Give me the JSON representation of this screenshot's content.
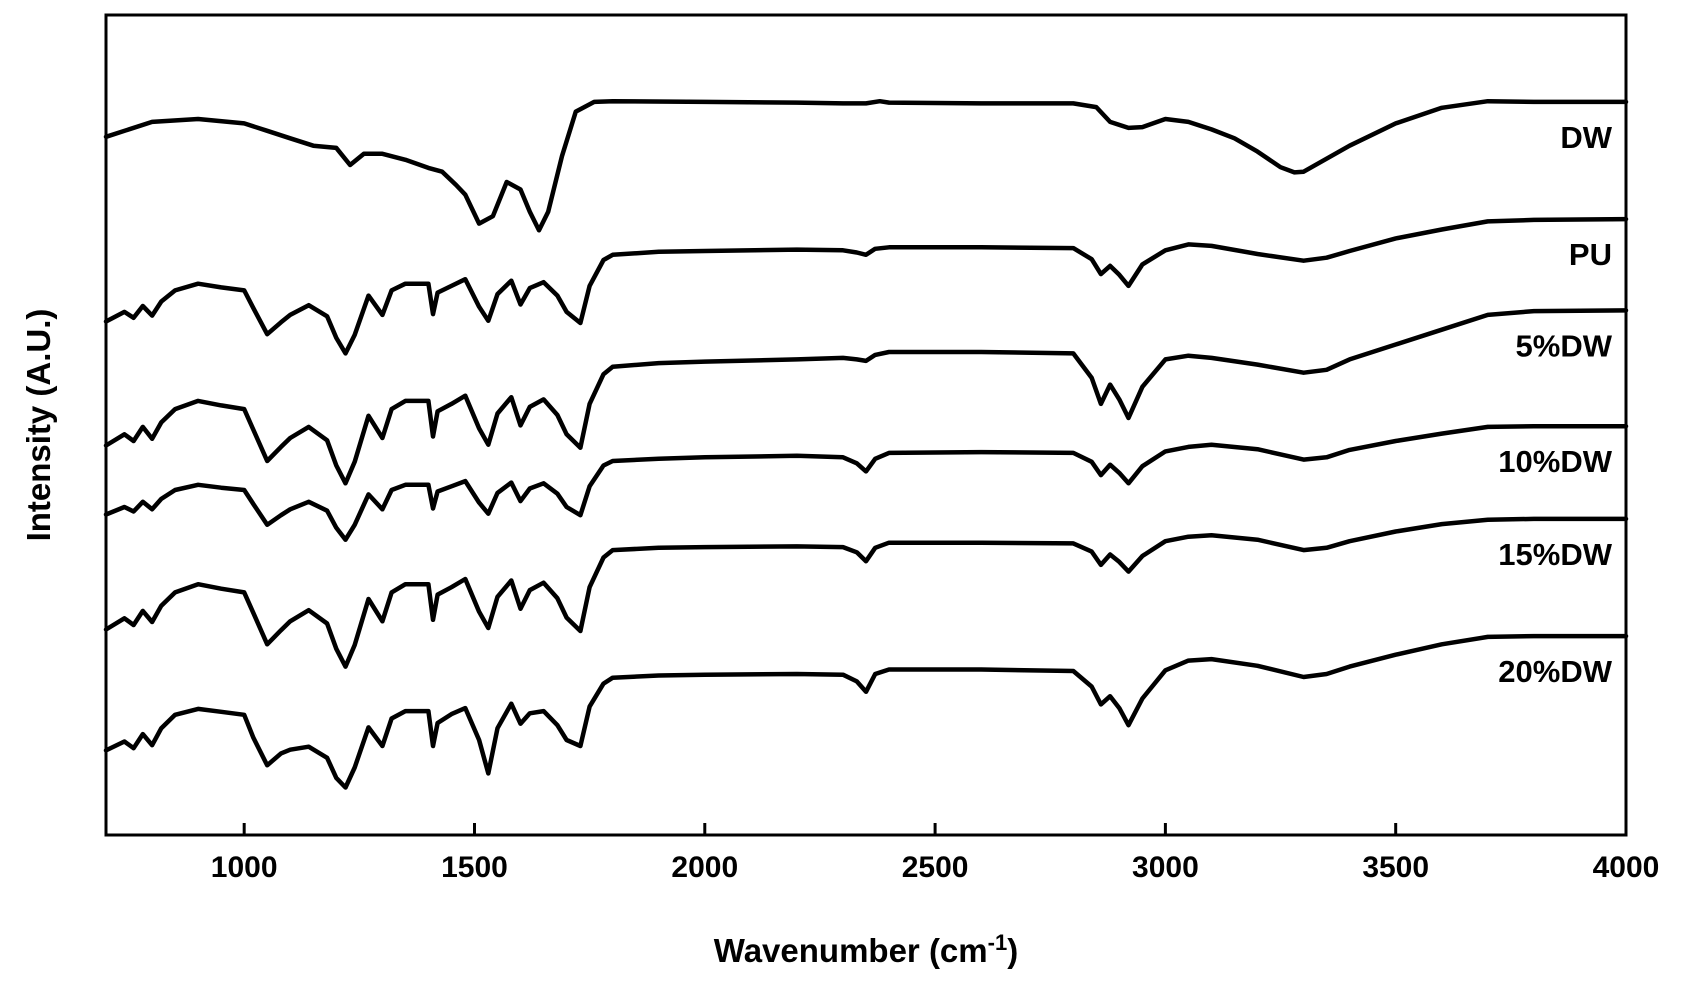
{
  "chart_data": {
    "type": "line",
    "xlabel": "Wavenumber (cm",
    "xlabel_superscript": "-1",
    "xlabel_suffix": ")",
    "ylabel": "Intensity (A.U.)",
    "xlim": [
      700,
      4000
    ],
    "ylim": [
      0,
      100
    ],
    "xticks": [
      1000,
      1500,
      2000,
      2500,
      3000,
      3500,
      4000
    ],
    "y_ticks_shown": false,
    "grid": false,
    "series": [
      {
        "name": "DW",
        "x": [
          700,
          800,
          900,
          1000,
          1050,
          1100,
          1150,
          1200,
          1230,
          1260,
          1300,
          1350,
          1400,
          1430,
          1460,
          1480,
          1510,
          1540,
          1570,
          1600,
          1620,
          1640,
          1660,
          1690,
          1720,
          1760,
          1800,
          2000,
          2200,
          2300,
          2350,
          2380,
          2400,
          2600,
          2800,
          2850,
          2880,
          2920,
          2950,
          3000,
          3050,
          3100,
          3150,
          3200,
          3250,
          3280,
          3300,
          3400,
          3500,
          3600,
          3700,
          3800,
          4000
        ],
        "y": [
          91.0,
          93.0,
          93.4,
          92.8,
          91.8,
          90.8,
          89.8,
          89.5,
          87.2,
          88.7,
          88.7,
          87.9,
          86.8,
          86.3,
          84.5,
          83.2,
          79.3,
          80.3,
          84.9,
          83.9,
          80.9,
          78.4,
          80.9,
          88.4,
          94.4,
          95.7,
          95.8,
          95.7,
          95.6,
          95.5,
          95.5,
          95.8,
          95.6,
          95.5,
          95.5,
          95.0,
          93.0,
          92.2,
          92.3,
          93.4,
          93.0,
          92.0,
          90.8,
          89.0,
          86.9,
          86.2,
          86.3,
          89.8,
          92.8,
          94.9,
          95.8,
          95.7,
          95.7
        ]
      },
      {
        "name": "PU",
        "x": [
          700,
          740,
          760,
          780,
          800,
          820,
          850,
          900,
          950,
          1000,
          1020,
          1050,
          1080,
          1100,
          1140,
          1180,
          1200,
          1220,
          1240,
          1270,
          1300,
          1320,
          1350,
          1400,
          1410,
          1420,
          1450,
          1480,
          1510,
          1530,
          1550,
          1580,
          1600,
          1620,
          1650,
          1680,
          1700,
          1730,
          1750,
          1780,
          1800,
          1900,
          2000,
          2200,
          2300,
          2330,
          2350,
          2370,
          2400,
          2600,
          2800,
          2840,
          2860,
          2880,
          2900,
          2920,
          2950,
          3000,
          3050,
          3100,
          3200,
          3300,
          3350,
          3400,
          3500,
          3600,
          3700,
          3800,
          4000
        ],
        "y": [
          66.1,
          67.4,
          66.6,
          68.2,
          66.9,
          68.8,
          70.3,
          71.2,
          70.7,
          70.3,
          67.9,
          64.4,
          66.0,
          67.0,
          68.3,
          66.8,
          63.9,
          61.8,
          64.3,
          69.6,
          67.0,
          70.3,
          71.2,
          71.2,
          67.1,
          70.0,
          70.9,
          71.8,
          68.1,
          66.2,
          69.8,
          71.6,
          68.4,
          70.6,
          71.4,
          69.6,
          67.4,
          65.9,
          70.9,
          74.4,
          75.1,
          75.5,
          75.6,
          75.8,
          75.7,
          75.4,
          75.1,
          75.9,
          76.1,
          76.1,
          76.0,
          74.5,
          72.5,
          73.6,
          72.4,
          70.9,
          73.8,
          75.7,
          76.5,
          76.3,
          75.2,
          74.3,
          74.7,
          75.6,
          77.3,
          78.5,
          79.6,
          79.8,
          79.9
        ]
      },
      {
        "name": "5%DW",
        "x": [
          700,
          740,
          760,
          780,
          800,
          820,
          850,
          900,
          950,
          1000,
          1020,
          1050,
          1080,
          1100,
          1140,
          1180,
          1200,
          1220,
          1240,
          1270,
          1300,
          1320,
          1350,
          1400,
          1410,
          1420,
          1450,
          1480,
          1510,
          1530,
          1550,
          1580,
          1600,
          1620,
          1650,
          1680,
          1700,
          1730,
          1750,
          1780,
          1800,
          1900,
          2000,
          2200,
          2300,
          2330,
          2350,
          2370,
          2400,
          2600,
          2800,
          2840,
          2860,
          2880,
          2900,
          2920,
          2950,
          3000,
          3050,
          3100,
          3200,
          3300,
          3350,
          3400,
          3500,
          3600,
          3700,
          3800,
          4000
        ],
        "y": [
          49.4,
          50.9,
          50.0,
          51.9,
          50.3,
          52.5,
          54.3,
          55.4,
          54.8,
          54.3,
          51.5,
          47.3,
          49.2,
          50.4,
          51.9,
          50.1,
          46.7,
          44.3,
          47.2,
          53.4,
          50.4,
          54.3,
          55.4,
          55.4,
          50.6,
          54.0,
          55.0,
          56.1,
          51.7,
          49.5,
          53.7,
          55.9,
          52.1,
          54.6,
          55.6,
          53.5,
          50.9,
          49.1,
          55.0,
          59.0,
          60.0,
          60.5,
          60.7,
          61.0,
          61.2,
          61.0,
          60.8,
          61.6,
          62.0,
          62.0,
          61.8,
          58.5,
          55.0,
          57.6,
          55.6,
          53.1,
          57.3,
          61.0,
          61.5,
          61.2,
          60.3,
          59.2,
          59.6,
          61.0,
          63.0,
          65.0,
          67.0,
          67.5,
          67.6
        ]
      },
      {
        "name": "10%DW",
        "x": [
          700,
          740,
          760,
          780,
          800,
          820,
          850,
          900,
          950,
          1000,
          1020,
          1050,
          1080,
          1100,
          1140,
          1180,
          1200,
          1220,
          1240,
          1270,
          1300,
          1320,
          1350,
          1400,
          1410,
          1420,
          1450,
          1480,
          1510,
          1530,
          1550,
          1580,
          1600,
          1620,
          1650,
          1680,
          1700,
          1730,
          1750,
          1780,
          1800,
          1900,
          2000,
          2200,
          2300,
          2330,
          2350,
          2370,
          2400,
          2600,
          2800,
          2840,
          2860,
          2880,
          2900,
          2920,
          2950,
          3000,
          3050,
          3100,
          3200,
          3300,
          3350,
          3400,
          3500,
          3600,
          3700,
          3800,
          4000
        ],
        "y": [
          40.1,
          41.1,
          40.5,
          41.8,
          40.8,
          42.2,
          43.4,
          44.1,
          43.7,
          43.4,
          41.5,
          38.7,
          40.0,
          40.8,
          41.8,
          40.6,
          38.3,
          36.7,
          38.7,
          42.8,
          40.8,
          43.4,
          44.1,
          44.1,
          40.9,
          43.2,
          43.9,
          44.6,
          41.7,
          40.2,
          43.0,
          44.4,
          41.9,
          43.6,
          44.3,
          42.9,
          41.1,
          40.0,
          43.9,
          46.7,
          47.3,
          47.6,
          47.8,
          48.0,
          47.8,
          47.0,
          45.9,
          47.6,
          48.4,
          48.5,
          48.4,
          47.2,
          45.4,
          46.8,
          45.7,
          44.3,
          46.6,
          48.6,
          49.2,
          49.5,
          48.9,
          47.5,
          47.8,
          48.8,
          50.0,
          51.0,
          51.9,
          52.0,
          52.0
        ]
      },
      {
        "name": "15%DW",
        "x": [
          700,
          740,
          760,
          780,
          800,
          820,
          850,
          900,
          950,
          1000,
          1020,
          1050,
          1080,
          1100,
          1140,
          1180,
          1200,
          1220,
          1240,
          1270,
          1300,
          1320,
          1350,
          1400,
          1410,
          1420,
          1450,
          1480,
          1510,
          1530,
          1550,
          1580,
          1600,
          1620,
          1650,
          1680,
          1700,
          1730,
          1750,
          1780,
          1800,
          1900,
          2000,
          2200,
          2300,
          2330,
          2350,
          2370,
          2400,
          2600,
          2800,
          2840,
          2860,
          2880,
          2900,
          2920,
          2950,
          3000,
          3050,
          3100,
          3200,
          3300,
          3350,
          3400,
          3500,
          3600,
          3700,
          3800,
          4000
        ],
        "y": [
          24.6,
          26.1,
          25.2,
          27.1,
          25.6,
          27.8,
          29.6,
          30.7,
          30.1,
          29.6,
          26.8,
          22.6,
          24.5,
          25.7,
          27.2,
          25.4,
          22.0,
          19.6,
          22.5,
          28.7,
          25.7,
          29.6,
          30.7,
          30.7,
          25.9,
          29.3,
          30.3,
          31.4,
          27.0,
          24.8,
          29.0,
          31.2,
          27.4,
          29.9,
          30.9,
          28.8,
          26.2,
          24.4,
          30.3,
          34.3,
          35.3,
          35.6,
          35.7,
          35.8,
          35.7,
          35.0,
          33.8,
          35.6,
          36.3,
          36.3,
          36.2,
          35.1,
          33.3,
          34.7,
          33.7,
          32.4,
          34.5,
          36.5,
          37.1,
          37.3,
          36.7,
          35.3,
          35.6,
          36.5,
          37.8,
          38.8,
          39.4,
          39.5,
          39.5
        ]
      },
      {
        "name": "20%DW",
        "x": [
          700,
          740,
          760,
          780,
          800,
          820,
          850,
          900,
          950,
          1000,
          1020,
          1050,
          1080,
          1100,
          1140,
          1180,
          1200,
          1220,
          1240,
          1270,
          1300,
          1320,
          1350,
          1400,
          1410,
          1420,
          1450,
          1480,
          1510,
          1530,
          1550,
          1580,
          1600,
          1620,
          1650,
          1680,
          1700,
          1730,
          1750,
          1780,
          1800,
          1900,
          2000,
          2200,
          2300,
          2330,
          2350,
          2370,
          2400,
          2600,
          2800,
          2840,
          2860,
          2880,
          2900,
          2920,
          2950,
          3000,
          3050,
          3100,
          3200,
          3300,
          3350,
          3400,
          3500,
          3600,
          3700,
          3800,
          4000
        ],
        "y": [
          8.3,
          9.5,
          8.6,
          10.5,
          9.0,
          11.3,
          13.1,
          13.9,
          13.5,
          13.1,
          10.0,
          6.3,
          7.9,
          8.4,
          8.8,
          7.3,
          4.6,
          3.3,
          6.0,
          11.4,
          8.9,
          12.6,
          13.6,
          13.6,
          8.9,
          12.0,
          13.2,
          14.0,
          9.7,
          5.2,
          11.3,
          14.6,
          11.9,
          13.3,
          13.6,
          11.7,
          9.7,
          8.9,
          14.2,
          17.3,
          18.1,
          18.4,
          18.5,
          18.6,
          18.5,
          17.6,
          16.2,
          18.6,
          19.2,
          19.2,
          19.0,
          16.9,
          14.5,
          15.6,
          14.0,
          11.7,
          15.3,
          19.1,
          20.4,
          20.6,
          19.7,
          18.2,
          18.6,
          19.6,
          21.2,
          22.6,
          23.6,
          23.7,
          23.7
        ]
      }
    ]
  }
}
